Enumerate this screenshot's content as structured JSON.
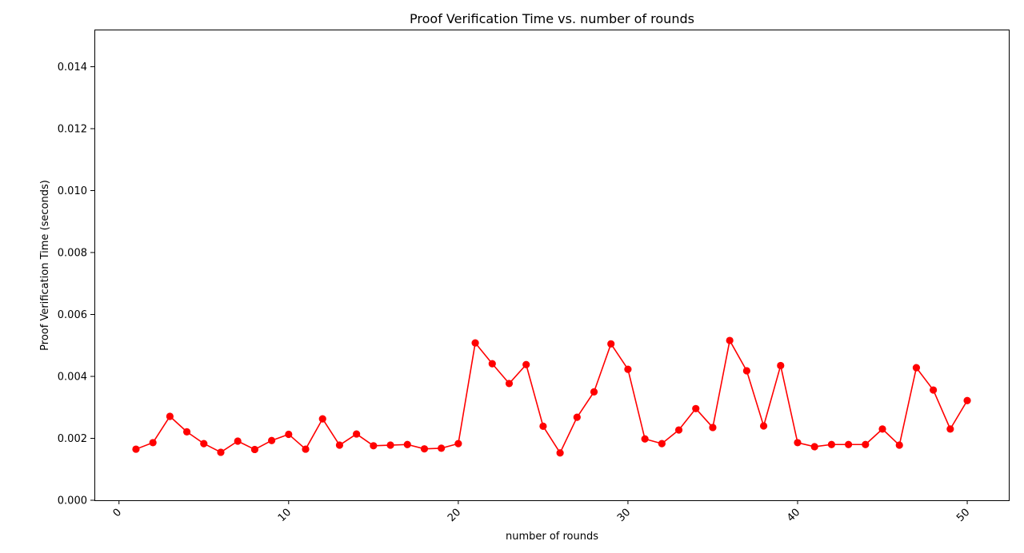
{
  "chart_data": {
    "type": "line",
    "title": "Proof Verification Time vs. number of rounds",
    "xlabel": "number of rounds",
    "ylabel": "Proof Verification Time (seconds)",
    "xlim": [
      -1.45,
      52.45
    ],
    "ylim": [
      0,
      0.0152
    ],
    "xticks": [
      0,
      10,
      20,
      30,
      40,
      50
    ],
    "xtick_labels": [
      "0",
      "10",
      "20",
      "30",
      "40",
      "50"
    ],
    "yticks": [
      0,
      0.002,
      0.004,
      0.006,
      0.008,
      0.01,
      0.012,
      0.014
    ],
    "ytick_labels": [
      "0.000",
      "0.002",
      "0.004",
      "0.006",
      "0.008",
      "0.010",
      "0.012",
      "0.014"
    ],
    "grid": false,
    "series": [
      {
        "color": "#ff0000",
        "marker": "circle",
        "x": [
          1,
          2,
          3,
          4,
          5,
          6,
          7,
          8,
          9,
          10,
          11,
          12,
          13,
          14,
          15,
          16,
          17,
          18,
          19,
          20,
          21,
          22,
          23,
          24,
          25,
          26,
          27,
          28,
          29,
          30,
          31,
          32,
          33,
          34,
          35,
          36,
          37,
          38,
          39,
          40,
          41,
          42,
          43,
          44,
          45,
          46,
          47,
          48,
          49,
          50
        ],
        "values": [
          0.00165,
          0.00186,
          0.00271,
          0.00221,
          0.00183,
          0.00155,
          0.00191,
          0.00164,
          0.00193,
          0.00213,
          0.00165,
          0.00263,
          0.00178,
          0.00214,
          0.00176,
          0.00178,
          0.0018,
          0.00166,
          0.00168,
          0.00183,
          0.00508,
          0.00441,
          0.00377,
          0.00438,
          0.00239,
          0.00153,
          0.00268,
          0.0035,
          0.00505,
          0.00423,
          0.00198,
          0.00183,
          0.00227,
          0.00296,
          0.00235,
          0.00516,
          0.00418,
          0.0024,
          0.00435,
          0.00186,
          0.00173,
          0.0018,
          0.0018,
          0.0018,
          0.0023,
          0.00178,
          0.00428,
          0.00356,
          0.0023,
          0.00322
        ]
      }
    ]
  }
}
